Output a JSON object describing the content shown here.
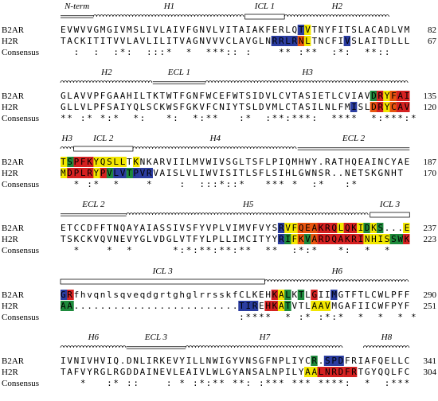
{
  "alignment": {
    "row_labels": [
      "B2AR",
      "H2R",
      "Consensus"
    ],
    "blocks": [
      {
        "annotations": [
          {
            "label": "N-term",
            "type": "line",
            "start": 0,
            "end": 4
          },
          {
            "label": "H1",
            "type": "helix",
            "start": 5,
            "end": 27
          },
          {
            "label": "ICL 1",
            "type": "box",
            "start": 28,
            "end": 33
          },
          {
            "label": "H2",
            "type": "helix",
            "start": 34,
            "end": 49
          }
        ],
        "rows": [
          {
            "seq": "EVWVVGMGIVMSLIVLAIVFGNVLVITAIAKFERLQTVTNYFITSLACADLVM",
            "end": "82",
            "colors": [
              [
                36,
                "#2a3ca0"
              ],
              [
                37,
                "#f2e600"
              ]
            ]
          },
          {
            "seq": "TACKITITVVLAVLILITVAGNVVVCLAVGLNRRLRNLTNCFIVSLAITDLLL",
            "end": "67",
            "colors": [
              [
                32,
                "#2a3ca0"
              ],
              [
                33,
                "#2a3ca0"
              ],
              [
                34,
                "#2a3ca0"
              ],
              [
                35,
                "#2a3ca0"
              ],
              [
                36,
                "#e8540e"
              ],
              [
                37,
                "#f2e600"
              ],
              [
                43,
                "#2a3ca0"
              ]
            ]
          },
          {
            "seq": "  :  :  :*:  :::*  *  ***:: :    ** :**  :*:  **:: "
          }
        ]
      },
      {
        "annotations": [
          {
            "label": "H2",
            "type": "helix",
            "start": 0,
            "end": 13
          },
          {
            "label": "ECL 1",
            "type": "line",
            "start": 14,
            "end": 21
          },
          {
            "label": "H3",
            "type": "helix",
            "start": 22,
            "end": 52
          }
        ],
        "rows": [
          {
            "seq": "GLAVVPFGAAHILTKTWTFGNFWCEFWTSIDVLCVTASIETLCVIAVDRYFAI",
            "end": "135",
            "colors": [
              [
                47,
                "#1e8a3c"
              ],
              [
                48,
                "#d42020"
              ],
              [
                49,
                "#f2e600"
              ],
              [
                50,
                "#e8540e"
              ],
              [
                51,
                "#d42020"
              ],
              [
                52,
                "#d42020"
              ]
            ]
          },
          {
            "seq": "GLLVLPFSAIYQLSCKWSFGKVFCNIYTSLDVMLCTASILNLFMISLDRYCAV",
            "end": "120",
            "colors": [
              [
                44,
                "#2a3ca0"
              ],
              [
                47,
                "#e8540e"
              ],
              [
                48,
                "#d42020"
              ],
              [
                49,
                "#f2e600"
              ],
              [
                50,
                "#e8540e"
              ],
              [
                51,
                "#d42020"
              ],
              [
                52,
                "#d42020"
              ]
            ]
          },
          {
            "seq": "** :* *:*  *:   *:  *:**   :*  :**:***:  ****  *:***:*"
          }
        ]
      },
      {
        "annotations": [
          {
            "label": "H3",
            "type": "helix",
            "start": 0,
            "end": 1
          },
          {
            "label": "ICL 2",
            "type": "box",
            "start": 2,
            "end": 10
          },
          {
            "label": "H4",
            "type": "helix",
            "start": 11,
            "end": 35
          },
          {
            "label": "ECL 2",
            "type": "line",
            "start": 36,
            "end": 52
          }
        ],
        "rows": [
          {
            "seq": "TSPFKYQSLLTKNKARVIILMVWIVSGLTSFLPIQMHWY.RATHQEAINCYAE",
            "end": "187",
            "colors": [
              [
                0,
                "#f2e600"
              ],
              [
                1,
                "#1e8a3c"
              ],
              [
                2,
                "#d42020"
              ],
              [
                3,
                "#d42020"
              ],
              [
                4,
                "#d42020"
              ],
              [
                5,
                "#f2e600"
              ],
              [
                6,
                "#f2e600"
              ],
              [
                7,
                "#f2e600"
              ],
              [
                8,
                "#f2e600"
              ],
              [
                9,
                "#f2e600"
              ],
              [
                11,
                "#f2e600"
              ]
            ]
          },
          {
            "seq": "MDPLRYPVLVTPVRVAISLVLIWVISITLSFLSIHLGWNSR..NETSKGNHT",
            "end": "170",
            "colors": [
              [
                0,
                "#f2e600"
              ],
              [
                1,
                "#d42020"
              ],
              [
                2,
                "#d42020"
              ],
              [
                3,
                "#d42020"
              ],
              [
                4,
                "#d42020"
              ],
              [
                5,
                "#f2e600"
              ],
              [
                6,
                "#d42020"
              ],
              [
                7,
                "#1e8a3c"
              ],
              [
                8,
                "#2a3ca0"
              ],
              [
                9,
                "#2a3ca0"
              ],
              [
                10,
                "#1e8a3c"
              ],
              [
                11,
                "#2a3ca0"
              ],
              [
                12,
                "#2a3ca0"
              ],
              [
                13,
                "#2a3ca0"
              ]
            ]
          },
          {
            "seq": "  * :*  *    *    :  :::*::*   *** *  :*   :*"
          }
        ]
      },
      {
        "annotations": [
          {
            "label": "ECL 2",
            "type": "line",
            "start": 0,
            "end": 9
          },
          {
            "label": "H5",
            "type": "helix",
            "start": 10,
            "end": 46
          },
          {
            "label": "ICL 3",
            "type": "box",
            "start": 47,
            "end": 52
          }
        ],
        "rows": [
          {
            "seq": "ETCCDFFTNQAYAIASSIVSFYVPLVIMVFVYSRVFQEAKRQLQKIDKS...E",
            "end": "237",
            "colors": [
              [
                33,
                "#2a3ca0"
              ],
              [
                34,
                "#f2e600"
              ],
              [
                35,
                "#f2e600"
              ],
              [
                36,
                "#e8540e"
              ],
              [
                37,
                "#e8540e"
              ],
              [
                38,
                "#e8540e"
              ],
              [
                39,
                "#d42020"
              ],
              [
                40,
                "#d42020"
              ],
              [
                41,
                "#d42020"
              ],
              [
                42,
                "#f2e600"
              ],
              [
                43,
                "#d42020"
              ],
              [
                44,
                "#d42020"
              ],
              [
                45,
                "#f2e600"
              ],
              [
                46,
                "#1e8a3c"
              ],
              [
                47,
                "#f2e600"
              ],
              [
                48,
                "#1e8a3c"
              ],
              [
                52,
                "#f2e600"
              ]
            ]
          },
          {
            "seq": "TSKCKVQVNEVYGLVDGLVTFYLPLLIMCITYYRIFKVARDQAKRINHISSWK",
            "end": "223",
            "colors": [
              [
                33,
                "#2a3ca0"
              ],
              [
                34,
                "#1e8a3c"
              ],
              [
                35,
                "#f2e600"
              ],
              [
                36,
                "#e8540e"
              ],
              [
                37,
                "#1e8a3c"
              ],
              [
                38,
                "#e8540e"
              ],
              [
                39,
                "#d42020"
              ],
              [
                40,
                "#d42020"
              ],
              [
                41,
                "#d42020"
              ],
              [
                42,
                "#d42020"
              ],
              [
                43,
                "#d42020"
              ],
              [
                44,
                "#d42020"
              ],
              [
                45,
                "#d42020"
              ],
              [
                46,
                "#f2e600"
              ],
              [
                47,
                "#f2e600"
              ],
              [
                48,
                "#f2e600"
              ],
              [
                49,
                "#f2e600"
              ],
              [
                50,
                "#1e8a3c"
              ],
              [
                51,
                "#1e8a3c"
              ],
              [
                52,
                "#d42020"
              ]
            ]
          },
          {
            "seq": "  *    *  *      *:*:**:**:**  **  :*:*   *:  *  *"
          }
        ]
      },
      {
        "annotations": [
          {
            "label": "ICL 3",
            "type": "box",
            "start": 0,
            "end": 30
          },
          {
            "label": "H6",
            "type": "helix",
            "start": 31,
            "end": 52
          }
        ],
        "rows": [
          {
            "seq": "GRfhvqnlsqveqdgrtghglrrsskfCLKEHKALKTLGIIMGTFTLCWLPFF",
            "end": "290",
            "colors": [
              [
                0,
                "#2a3ca0"
              ],
              [
                1,
                "#d42020"
              ],
              [
                32,
                "#d42020"
              ],
              [
                33,
                "#f2e600"
              ],
              [
                34,
                "#1e8a3c"
              ],
              [
                36,
                "#1e8a3c"
              ],
              [
                38,
                "#d42020"
              ],
              [
                41,
                "#2a3ca0"
              ]
            ]
          },
          {
            "seq": "AA.........................TIREHKATVTLAAVMGAFIICWFPYF",
            "end": "251",
            "colors": [
              [
                0,
                "#1e8a3c"
              ],
              [
                1,
                "#1e8a3c"
              ],
              [
                27,
                "#2a3ca0"
              ],
              [
                28,
                "#2a3ca0"
              ],
              [
                29,
                "#2a3ca0"
              ],
              [
                31,
                "#d42020"
              ],
              [
                32,
                "#d42020"
              ],
              [
                33,
                "#f2e600"
              ],
              [
                34,
                "#1e8a3c"
              ],
              [
                38,
                "#f2e600"
              ],
              [
                39,
                "#f2e600"
              ],
              [
                40,
                "#f2e600"
              ]
            ]
          },
          {
            "seq": "                           :****  * :* :*:*  *  *  * *"
          }
        ]
      },
      {
        "annotations": [
          {
            "label": "H6",
            "type": "helix",
            "start": 0,
            "end": 9
          },
          {
            "label": "ECL 3",
            "type": "line",
            "start": 10,
            "end": 18
          },
          {
            "label": "H7",
            "type": "helix",
            "start": 19,
            "end": 42
          },
          {
            "label": "H8",
            "type": "helix",
            "start": 46,
            "end": 52
          }
        ],
        "rows": [
          {
            "seq": "IVNIVHVIQ.DNLIRKEVYILLNWIGYVNSGFNPLIYCR.SPDFRIAFQELLC",
            "end": "341",
            "colors": [
              [
                38,
                "#1e8a3c"
              ],
              [
                40,
                "#2a3ca0"
              ],
              [
                41,
                "#2a3ca0"
              ],
              [
                42,
                "#2a3ca0"
              ]
            ]
          },
          {
            "seq": "TAFVYRGLRGDDAINEVLEAIVLWLGYANSALNPILYAALNRDFRTGYQQLFC",
            "end": "304",
            "colors": [
              [
                37,
                "#f2e600"
              ],
              [
                38,
                "#f2e600"
              ],
              [
                39,
                "#d42020"
              ],
              [
                40,
                "#d42020"
              ],
              [
                41,
                "#d42020"
              ],
              [
                42,
                "#d42020"
              ],
              [
                43,
                "#d42020"
              ],
              [
                44,
                "#d42020"
              ]
            ]
          },
          {
            "seq": "   *   :* ::    : * :*:** **: :*** *** ****:  *  :*** "
          }
        ]
      }
    ]
  }
}
